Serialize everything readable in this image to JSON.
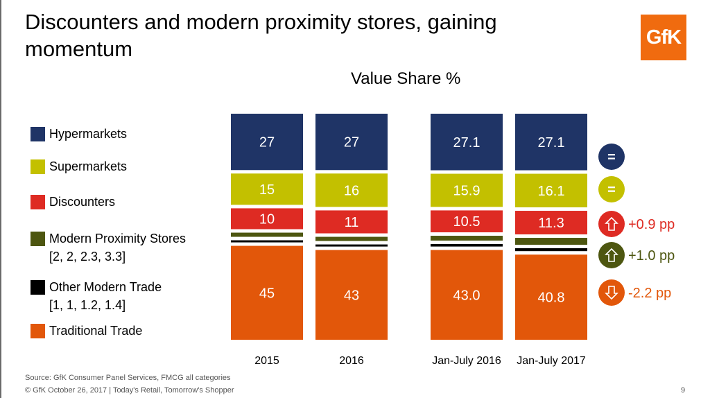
{
  "title": "Discounters and modern proximity stores, gaining momentum",
  "logo_text": "GfK",
  "legend": [
    {
      "key": "hyper",
      "label": "Hypermarkets",
      "sub": "",
      "color": "#1f3466"
    },
    {
      "key": "super",
      "label": "Supermarkets",
      "sub": "",
      "color": "#c3c000"
    },
    {
      "key": "disc",
      "label": "Discounters",
      "sub": "",
      "color": "#de2b23"
    },
    {
      "key": "prox",
      "label": "Modern Proximity Stores",
      "sub": "[2, 2, 2.3, 3.3]",
      "color": "#4d5610"
    },
    {
      "key": "other",
      "label": "Other Modern Trade",
      "sub": "[1, 1, 1.2, 1.4]",
      "color": "#000000"
    },
    {
      "key": "trad",
      "label": "Traditional Trade",
      "sub": "",
      "color": "#e2570a"
    }
  ],
  "chart_data": {
    "type": "bar",
    "stacked": true,
    "title": "Value Share %",
    "categories": [
      "2015",
      "2016",
      "Jan-July 2016",
      "Jan-July 2017"
    ],
    "series": [
      {
        "name": "Hypermarkets",
        "values": [
          27,
          27,
          27.1,
          27.1
        ],
        "labels": [
          "27",
          "27",
          "27.1",
          "27.1"
        ],
        "color": "#1f3466"
      },
      {
        "name": "Supermarkets",
        "values": [
          15,
          16,
          15.9,
          16.1
        ],
        "labels": [
          "15",
          "16",
          "15.9",
          "16.1"
        ],
        "color": "#c3c000"
      },
      {
        "name": "Discounters",
        "values": [
          10,
          11,
          10.5,
          11.3
        ],
        "labels": [
          "10",
          "11",
          "10.5",
          "11.3"
        ],
        "color": "#de2b23"
      },
      {
        "name": "Modern Proximity Stores",
        "values": [
          2,
          2,
          2.3,
          3.3
        ],
        "labels": [
          "",
          "",
          "",
          ""
        ],
        "color": "#4d5610"
      },
      {
        "name": "Other Modern Trade",
        "values": [
          1,
          1,
          1.2,
          1.4
        ],
        "labels": [
          "",
          "",
          "",
          ""
        ],
        "color": "#000000"
      },
      {
        "name": "Traditional Trade",
        "values": [
          45,
          43,
          43.0,
          40.8
        ],
        "labels": [
          "45",
          "43",
          "43.0",
          "40.8"
        ],
        "color": "#e2570a"
      }
    ],
    "changes": [
      {
        "series": "Hypermarkets",
        "symbol": "=",
        "text": "",
        "color": "#1f3466"
      },
      {
        "series": "Supermarkets",
        "symbol": "=",
        "text": "",
        "color": "#c3c000"
      },
      {
        "series": "Discounters",
        "symbol": "up",
        "text": "+0.9 pp",
        "color": "#de2b23"
      },
      {
        "series": "Modern Proximity Stores",
        "symbol": "up",
        "text": "+1.0 pp",
        "color": "#4d5610"
      },
      {
        "series": "Traditional Trade",
        "symbol": "down",
        "text": "-2.2 pp",
        "color": "#e2570a"
      }
    ]
  },
  "source": "Source: GfK Consumer Panel Services, FMCG all categories",
  "footer": "© GfK October 26, 2017 | Today's Retail, Tomorrow's Shopper",
  "page_number": "9"
}
